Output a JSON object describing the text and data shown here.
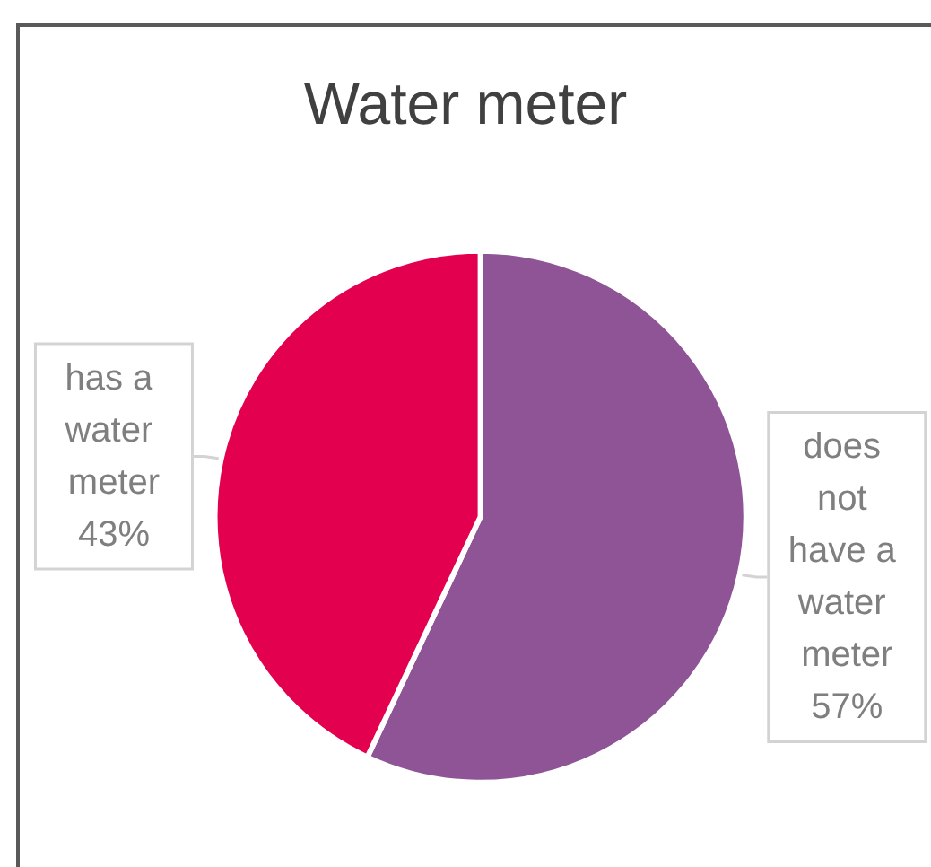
{
  "chart_data": {
    "type": "pie",
    "title": "Water meter",
    "categories": [
      "does not have a water meter",
      "has a water meter"
    ],
    "values": [
      57,
      43
    ],
    "value_labels": [
      "57%",
      "43%"
    ],
    "colors": [
      "#8f5496",
      "#e2004f"
    ]
  }
}
